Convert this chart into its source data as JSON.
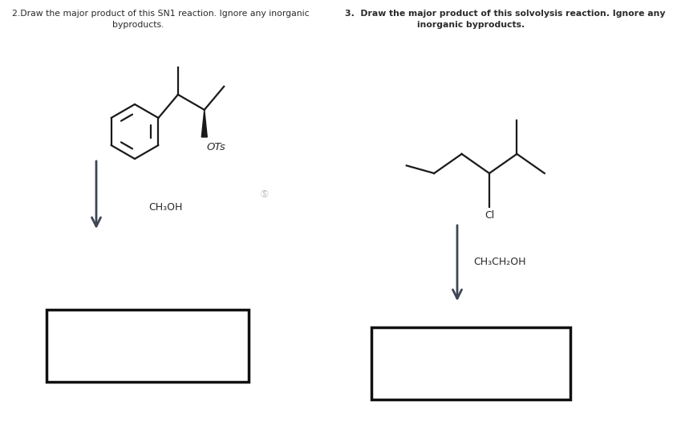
{
  "title_left_line1": "2.Draw the major product of this SN1 reaction. Ignore any inorganic",
  "title_left_line2": "byproducts.",
  "title_right_line1": "3.  Draw the major product of this solvolysis reaction. Ignore any",
  "title_right_line2": "inorganic byproducts.",
  "label_OTs": "OTs",
  "label_Cl": "Cl",
  "reagent_left": "CH₃OH",
  "reagent_right": "CH₃CH₂OH",
  "bg_color": "#ffffff",
  "line_color": "#1a1a1a",
  "arrow_color": "#3d4555",
  "text_color": "#2a2a2a",
  "box_line_color": "#111111",
  "small_icon": "Ⓢ"
}
